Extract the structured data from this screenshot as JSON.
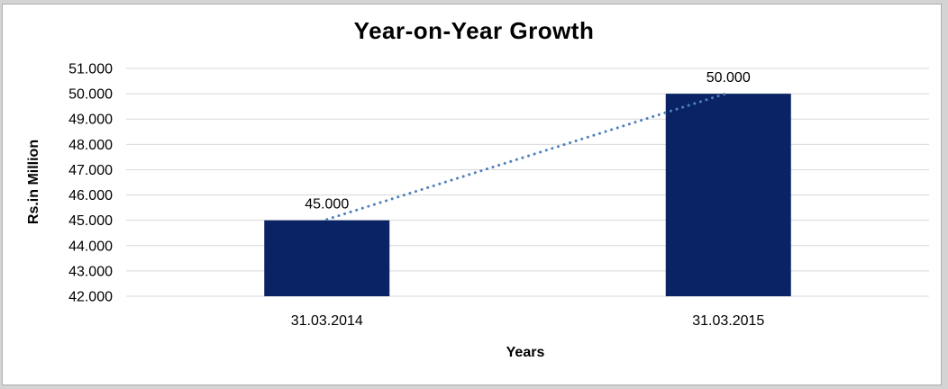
{
  "window": {
    "background": "#d4d4d4",
    "panel_background": "#ffffff",
    "panel_border": "#aeaeae"
  },
  "chart_data": {
    "type": "bar",
    "title": "Year-on-Year Growth",
    "xlabel": "Years",
    "ylabel": "Rs.in Million",
    "categories": [
      "31.03.2014",
      "31.03.2015"
    ],
    "values": [
      45000,
      50000
    ],
    "data_labels": [
      "45.000",
      "50.000"
    ],
    "ylim": [
      42000,
      51000
    ],
    "ytick_step": 1000,
    "ytick_labels": [
      "42.000",
      "43.000",
      "44.000",
      "45.000",
      "46.000",
      "47.000",
      "48.000",
      "49.000",
      "50.000",
      "51.000"
    ],
    "grid": true,
    "legend": "none",
    "trendline": {
      "type": "linear",
      "style": "dotted",
      "from_value": 45000,
      "to_value": 50000
    },
    "colors": {
      "bar": "#0a2364",
      "trendline": "#4f81bd",
      "gridline": "#d9d9d9",
      "text": "#000000"
    }
  }
}
